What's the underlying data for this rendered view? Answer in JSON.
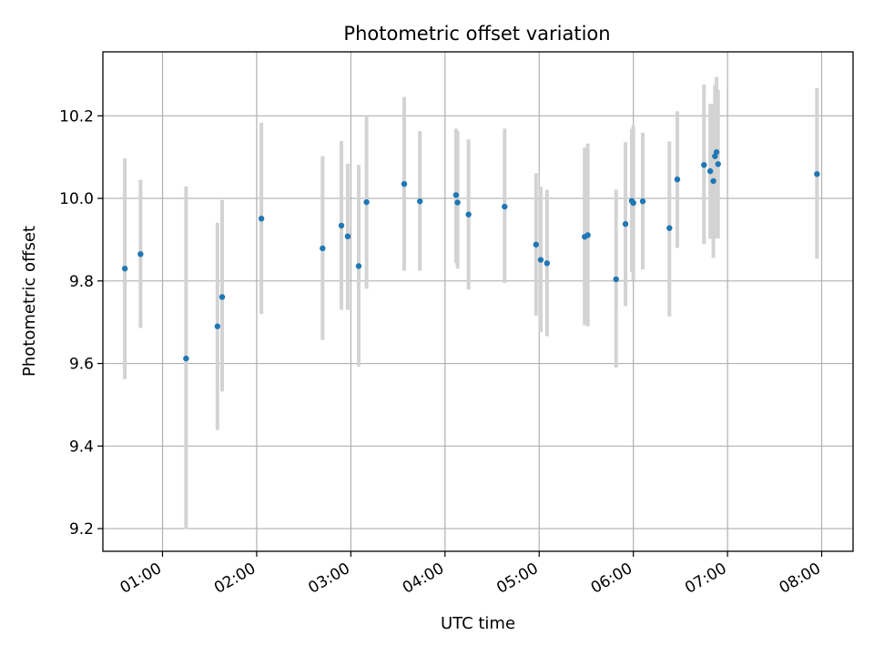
{
  "chart_data": {
    "type": "scatter",
    "title": "Photometric offset variation",
    "xlabel": "UTC time",
    "ylabel": "Photometric offset",
    "grid": true,
    "legend": "none",
    "xlim": [
      "00:22",
      "08:20"
    ],
    "ylim": [
      9.145,
      10.355
    ],
    "x_ticks": [
      "01:00",
      "02:00",
      "03:00",
      "04:00",
      "05:00",
      "06:00",
      "07:00",
      "08:00"
    ],
    "y_ticks": [
      "9.2",
      "9.4",
      "9.6",
      "9.8",
      "10.0",
      "10.2"
    ],
    "point_color": "#1f77b4",
    "errorbar_color": "#d3d3d3",
    "grid_color": "#b0b0b0",
    "points": [
      {
        "time": "00:36",
        "y": 9.83,
        "ylow": 9.562,
        "yhigh": 10.097
      },
      {
        "time": "00:46",
        "y": 9.865,
        "ylow": 9.686,
        "yhigh": 10.045
      },
      {
        "time": "01:15",
        "y": 9.612,
        "ylow": 9.199,
        "yhigh": 10.029
      },
      {
        "time": "01:35",
        "y": 9.69,
        "ylow": 9.439,
        "yhigh": 9.941
      },
      {
        "time": "01:38",
        "y": 9.761,
        "ylow": 9.532,
        "yhigh": 9.996
      },
      {
        "time": "02:03",
        "y": 9.951,
        "ylow": 9.72,
        "yhigh": 10.183
      },
      {
        "time": "02:42",
        "y": 9.879,
        "ylow": 9.657,
        "yhigh": 10.102
      },
      {
        "time": "02:54",
        "y": 9.934,
        "ylow": 9.73,
        "yhigh": 10.139
      },
      {
        "time": "02:58",
        "y": 9.908,
        "ylow": 9.73,
        "yhigh": 10.084
      },
      {
        "time": "03:05",
        "y": 9.836,
        "ylow": 9.593,
        "yhigh": 10.081
      },
      {
        "time": "03:10",
        "y": 9.991,
        "ylow": 9.781,
        "yhigh": 10.2
      },
      {
        "time": "03:34",
        "y": 10.035,
        "ylow": 9.825,
        "yhigh": 10.246
      },
      {
        "time": "03:44",
        "y": 9.993,
        "ylow": 9.825,
        "yhigh": 10.163
      },
      {
        "time": "04:07",
        "y": 10.008,
        "ylow": 9.843,
        "yhigh": 10.169
      },
      {
        "time": "04:08",
        "y": 9.99,
        "ylow": 9.83,
        "yhigh": 10.163
      },
      {
        "time": "04:15",
        "y": 9.961,
        "ylow": 9.779,
        "yhigh": 10.143
      },
      {
        "time": "04:38",
        "y": 9.98,
        "ylow": 9.795,
        "yhigh": 10.169
      },
      {
        "time": "04:58",
        "y": 9.888,
        "ylow": 9.716,
        "yhigh": 10.061
      },
      {
        "time": "05:01",
        "y": 9.851,
        "ylow": 9.676,
        "yhigh": 10.028
      },
      {
        "time": "05:05",
        "y": 9.843,
        "ylow": 9.666,
        "yhigh": 10.021
      },
      {
        "time": "05:29",
        "y": 9.907,
        "ylow": 9.693,
        "yhigh": 10.123
      },
      {
        "time": "05:31",
        "y": 9.911,
        "ylow": 9.69,
        "yhigh": 10.133
      },
      {
        "time": "05:49",
        "y": 9.804,
        "ylow": 9.59,
        "yhigh": 10.021
      },
      {
        "time": "05:55",
        "y": 9.938,
        "ylow": 9.739,
        "yhigh": 10.136
      },
      {
        "time": "05:59",
        "y": 9.994,
        "ylow": 9.821,
        "yhigh": 10.169
      },
      {
        "time": "06:00",
        "y": 9.989,
        "ylow": 9.801,
        "yhigh": 10.177
      },
      {
        "time": "06:06",
        "y": 9.993,
        "ylow": 9.828,
        "yhigh": 10.159
      },
      {
        "time": "06:23",
        "y": 9.928,
        "ylow": 9.714,
        "yhigh": 10.138
      },
      {
        "time": "06:28",
        "y": 10.046,
        "ylow": 9.88,
        "yhigh": 10.211
      },
      {
        "time": "06:45",
        "y": 10.081,
        "ylow": 9.889,
        "yhigh": 10.276
      },
      {
        "time": "06:49",
        "y": 10.066,
        "ylow": 9.902,
        "yhigh": 10.229
      },
      {
        "time": "06:51",
        "y": 10.042,
        "ylow": 9.856,
        "yhigh": 10.229
      },
      {
        "time": "06:52",
        "y": 10.102,
        "ylow": 9.903,
        "yhigh": 10.275
      },
      {
        "time": "06:53",
        "y": 10.112,
        "ylow": 9.917,
        "yhigh": 10.294
      },
      {
        "time": "06:54",
        "y": 10.083,
        "ylow": 9.903,
        "yhigh": 10.263
      },
      {
        "time": "07:57",
        "y": 10.059,
        "ylow": 9.854,
        "yhigh": 10.267
      }
    ]
  }
}
